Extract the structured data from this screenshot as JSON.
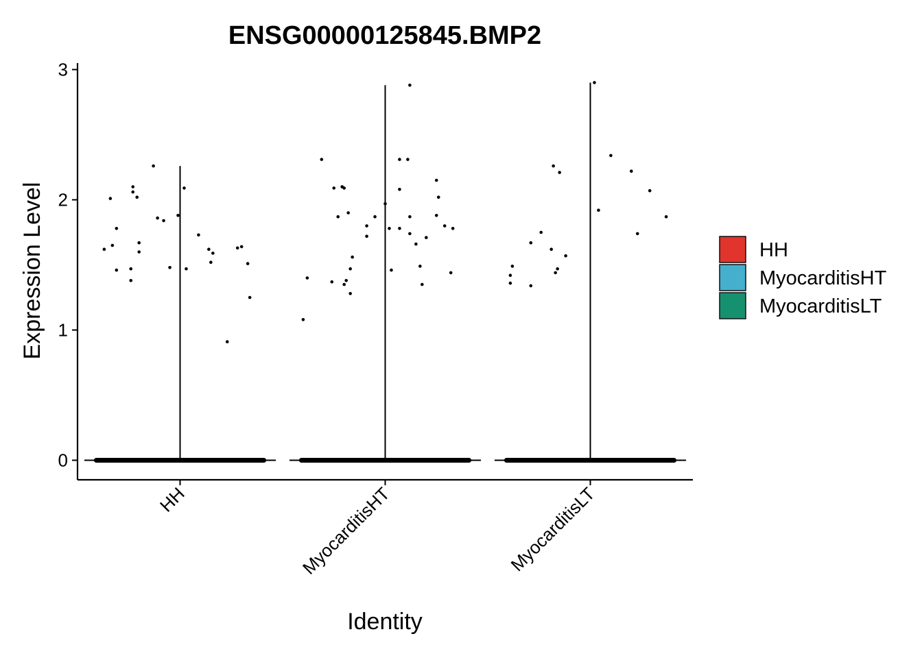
{
  "chart_data": {
    "type": "violin",
    "title": "ENSG00000125845.BMP2",
    "xlabel": "Identity",
    "ylabel": "Expression Level",
    "ylim": [
      -0.15,
      3.05
    ],
    "yticks": [
      0,
      1,
      2,
      3
    ],
    "categories": [
      "HH",
      "MyocarditisHT",
      "MyocarditisLT"
    ],
    "legend": {
      "position": "right",
      "entries": [
        {
          "name": "HH",
          "color": "#E0342C"
        },
        {
          "name": "MyocarditisHT",
          "color": "#45AFCE"
        },
        {
          "name": "MyocarditisLT",
          "color": "#16916F"
        }
      ]
    },
    "series": [
      {
        "name": "HH",
        "max": 2.26,
        "zero_cluster_halfwidth": 0.42,
        "points": [
          {
            "x": -0.37,
            "y": 1.62
          },
          {
            "x": -0.34,
            "y": 2.01
          },
          {
            "x": -0.33,
            "y": 1.65
          },
          {
            "x": -0.31,
            "y": 1.78
          },
          {
            "x": -0.31,
            "y": 1.46
          },
          {
            "x": -0.24,
            "y": 1.47
          },
          {
            "x": -0.24,
            "y": 1.38
          },
          {
            "x": -0.23,
            "y": 2.1
          },
          {
            "x": -0.23,
            "y": 2.06
          },
          {
            "x": -0.21,
            "y": 2.02
          },
          {
            "x": -0.2,
            "y": 1.67
          },
          {
            "x": -0.2,
            "y": 1.6
          },
          {
            "x": -0.13,
            "y": 2.26
          },
          {
            "x": -0.11,
            "y": 1.86
          },
          {
            "x": -0.08,
            "y": 1.84
          },
          {
            "x": -0.05,
            "y": 1.48
          },
          {
            "x": -0.01,
            "y": 1.88
          },
          {
            "x": 0.02,
            "y": 2.09
          },
          {
            "x": 0.03,
            "y": 1.47
          },
          {
            "x": 0.09,
            "y": 1.73
          },
          {
            "x": 0.14,
            "y": 1.62
          },
          {
            "x": 0.15,
            "y": 1.52
          },
          {
            "x": 0.16,
            "y": 1.59
          },
          {
            "x": 0.23,
            "y": 0.91
          },
          {
            "x": 0.28,
            "y": 1.63
          },
          {
            "x": 0.3,
            "y": 1.64
          },
          {
            "x": 0.33,
            "y": 1.51
          },
          {
            "x": 0.34,
            "y": 1.25
          }
        ]
      },
      {
        "name": "MyocarditisHT",
        "max": 2.88,
        "zero_cluster_halfwidth": 0.42,
        "points": [
          {
            "x": -0.4,
            "y": 1.08
          },
          {
            "x": -0.38,
            "y": 1.4
          },
          {
            "x": -0.31,
            "y": 2.31
          },
          {
            "x": -0.26,
            "y": 1.37
          },
          {
            "x": -0.25,
            "y": 2.09
          },
          {
            "x": -0.23,
            "y": 1.87
          },
          {
            "x": -0.21,
            "y": 2.1
          },
          {
            "x": -0.21,
            "y": 2.1
          },
          {
            "x": -0.2,
            "y": 2.09
          },
          {
            "x": -0.2,
            "y": 1.35
          },
          {
            "x": -0.19,
            "y": 1.38
          },
          {
            "x": -0.18,
            "y": 1.9
          },
          {
            "x": -0.17,
            "y": 1.47
          },
          {
            "x": -0.17,
            "y": 1.28
          },
          {
            "x": -0.16,
            "y": 1.56
          },
          {
            "x": -0.09,
            "y": 1.72
          },
          {
            "x": -0.09,
            "y": 1.8
          },
          {
            "x": -0.05,
            "y": 1.87
          },
          {
            "x": 0.0,
            "y": 1.97
          },
          {
            "x": 0.02,
            "y": 1.78
          },
          {
            "x": 0.03,
            "y": 1.46
          },
          {
            "x": 0.07,
            "y": 1.78
          },
          {
            "x": 0.07,
            "y": 2.31
          },
          {
            "x": 0.07,
            "y": 2.08
          },
          {
            "x": 0.11,
            "y": 2.31
          },
          {
            "x": 0.12,
            "y": 1.74
          },
          {
            "x": 0.12,
            "y": 1.87
          },
          {
            "x": 0.12,
            "y": 2.88
          },
          {
            "x": 0.15,
            "y": 1.66
          },
          {
            "x": 0.17,
            "y": 1.49
          },
          {
            "x": 0.18,
            "y": 1.35
          },
          {
            "x": 0.2,
            "y": 1.71
          },
          {
            "x": 0.25,
            "y": 2.15
          },
          {
            "x": 0.25,
            "y": 1.88
          },
          {
            "x": 0.26,
            "y": 2.02
          },
          {
            "x": 0.29,
            "y": 1.8
          },
          {
            "x": 0.32,
            "y": 1.44
          },
          {
            "x": 0.33,
            "y": 1.78
          }
        ]
      },
      {
        "name": "MyocarditisLT",
        "max": 2.9,
        "zero_cluster_halfwidth": 0.42,
        "points": [
          {
            "x": -0.39,
            "y": 1.36
          },
          {
            "x": -0.39,
            "y": 1.42
          },
          {
            "x": -0.38,
            "y": 1.49
          },
          {
            "x": -0.29,
            "y": 1.67
          },
          {
            "x": -0.29,
            "y": 1.34
          },
          {
            "x": -0.24,
            "y": 1.75
          },
          {
            "x": -0.19,
            "y": 1.62
          },
          {
            "x": -0.18,
            "y": 2.26
          },
          {
            "x": -0.17,
            "y": 1.44
          },
          {
            "x": -0.16,
            "y": 1.47
          },
          {
            "x": -0.15,
            "y": 2.21
          },
          {
            "x": -0.12,
            "y": 1.57
          },
          {
            "x": 0.02,
            "y": 2.9
          },
          {
            "x": 0.04,
            "y": 1.92
          },
          {
            "x": 0.1,
            "y": 2.34
          },
          {
            "x": 0.2,
            "y": 2.22
          },
          {
            "x": 0.23,
            "y": 1.74
          },
          {
            "x": 0.29,
            "y": 2.07
          },
          {
            "x": 0.37,
            "y": 1.87
          }
        ]
      }
    ]
  }
}
